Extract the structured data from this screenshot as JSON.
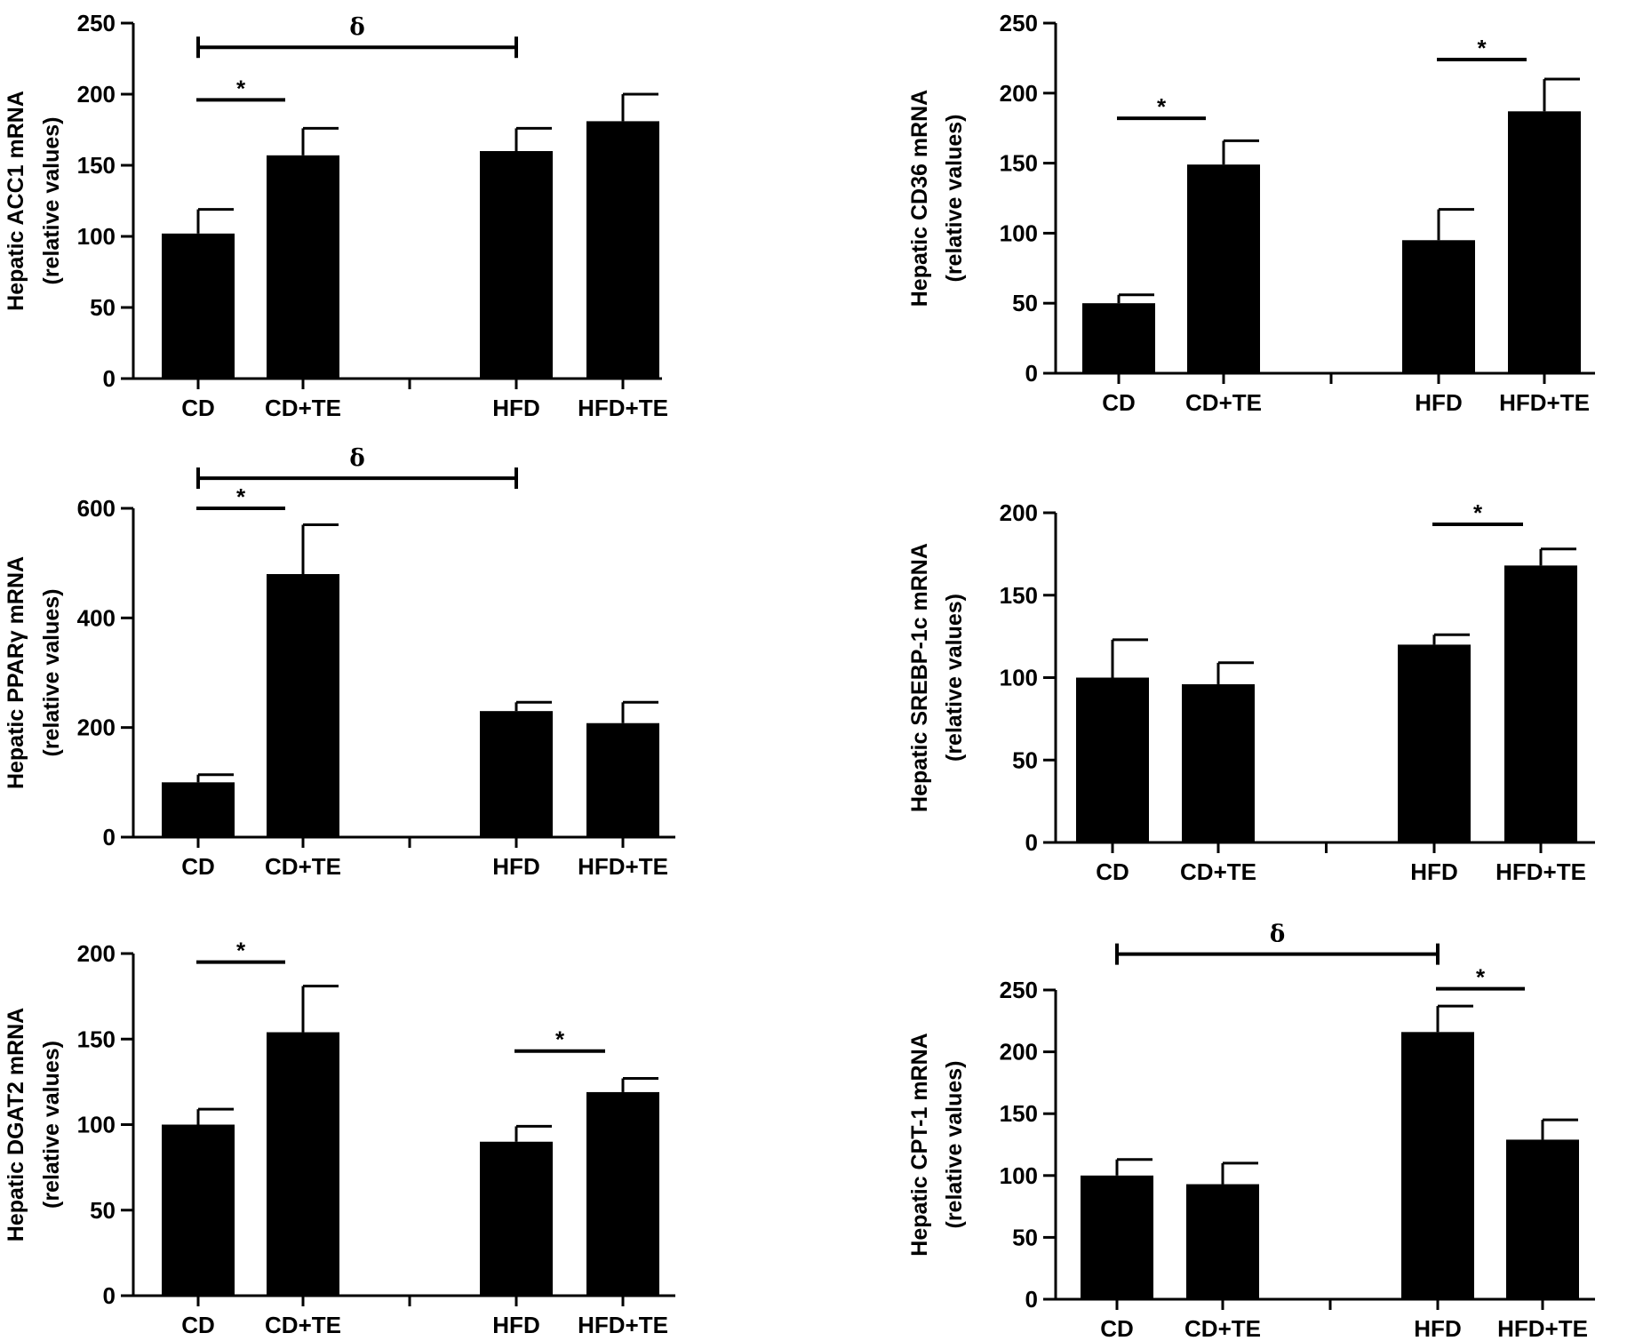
{
  "chart_data": [
    {
      "type": "bar",
      "ylabel": [
        "Hepatic ACC1 mRNA",
        "(relative values)"
      ],
      "ylim": [
        0,
        250
      ],
      "yticks": [
        0,
        50,
        100,
        150,
        200,
        250
      ],
      "categories": [
        "CD",
        "CD+TE",
        "HFD",
        "HFD+TE"
      ],
      "values": [
        102,
        157,
        160,
        181
      ],
      "errors": [
        17,
        19,
        16,
        19
      ],
      "colors": {
        "bar": "#000000"
      },
      "significance": [
        {
          "from": 0,
          "to": 1,
          "label": "*",
          "y": 196
        },
        {
          "from": 0,
          "to": 2,
          "label": "δ",
          "y": 233,
          "capped": true
        }
      ]
    },
    {
      "type": "bar",
      "ylabel": [
        "Hepatic CD36 mRNA",
        "(relative values)"
      ],
      "ylim": [
        0,
        250
      ],
      "yticks": [
        0,
        50,
        100,
        150,
        200,
        250
      ],
      "categories": [
        "CD",
        "CD+TE",
        "HFD",
        "HFD+TE"
      ],
      "values": [
        50,
        149,
        95,
        187
      ],
      "errors": [
        6,
        17,
        22,
        23
      ],
      "colors": {
        "bar": "#000000"
      },
      "significance": [
        {
          "from": 0,
          "to": 1,
          "label": "*",
          "y": 182
        },
        {
          "from": 2,
          "to": 3,
          "label": "*",
          "y": 224
        }
      ]
    },
    {
      "type": "bar",
      "ylabel": [
        "Hepatic PPARγ mRNA",
        "(relative values)"
      ],
      "ylim": [
        0,
        600
      ],
      "yticks": [
        0,
        200,
        400,
        600
      ],
      "categories": [
        "CD",
        "CD+TE",
        "HFD",
        "HFD+TE"
      ],
      "values": [
        100,
        480,
        230,
        208
      ],
      "errors": [
        14,
        90,
        16,
        38
      ],
      "colors": {
        "bar": "#000000"
      },
      "significance": [
        {
          "from": 0,
          "to": 1,
          "label": "*",
          "y": 600
        },
        {
          "from": 0,
          "to": 2,
          "label": "δ",
          "y": 655,
          "capped": true
        }
      ]
    },
    {
      "type": "bar",
      "ylabel": [
        "Hepatic SREBP-1c mRNA",
        "(relative values)"
      ],
      "ylim": [
        0,
        200
      ],
      "yticks": [
        0,
        50,
        100,
        150,
        200
      ],
      "categories": [
        "CD",
        "CD+TE",
        "HFD",
        "HFD+TE"
      ],
      "values": [
        100,
        96,
        120,
        168
      ],
      "errors": [
        23,
        13,
        6,
        10
      ],
      "colors": {
        "bar": "#000000"
      },
      "significance": [
        {
          "from": 2,
          "to": 3,
          "label": "*",
          "y": 193
        }
      ]
    },
    {
      "type": "bar",
      "ylabel": [
        "Hepatic DGAT2 mRNA",
        "(relative values)"
      ],
      "ylim": [
        0,
        200
      ],
      "yticks": [
        0,
        50,
        100,
        150,
        200
      ],
      "categories": [
        "CD",
        "CD+TE",
        "HFD",
        "HFD+TE"
      ],
      "values": [
        100,
        154,
        90,
        119
      ],
      "errors": [
        9,
        27,
        9,
        8
      ],
      "colors": {
        "bar": "#000000"
      },
      "significance": [
        {
          "from": 0,
          "to": 1,
          "label": "*",
          "y": 195
        },
        {
          "from": 2,
          "to": 3,
          "label": "*",
          "y": 143
        }
      ]
    },
    {
      "type": "bar",
      "ylabel": [
        "Hepatic CPT-1 mRNA",
        "(relative values)"
      ],
      "ylim": [
        0,
        250
      ],
      "yticks": [
        0,
        50,
        100,
        150,
        200,
        250
      ],
      "categories": [
        "CD",
        "CD+TE",
        "HFD",
        "HFD+TE"
      ],
      "values": [
        100,
        93,
        216,
        129
      ],
      "errors": [
        13,
        17,
        21,
        16
      ],
      "colors": {
        "bar": "#000000"
      },
      "significance": [
        {
          "from": 2,
          "to": 3,
          "label": "*",
          "y": 251
        },
        {
          "from": 0,
          "to": 2,
          "label": "δ",
          "y": 279,
          "capped": true
        }
      ]
    }
  ]
}
